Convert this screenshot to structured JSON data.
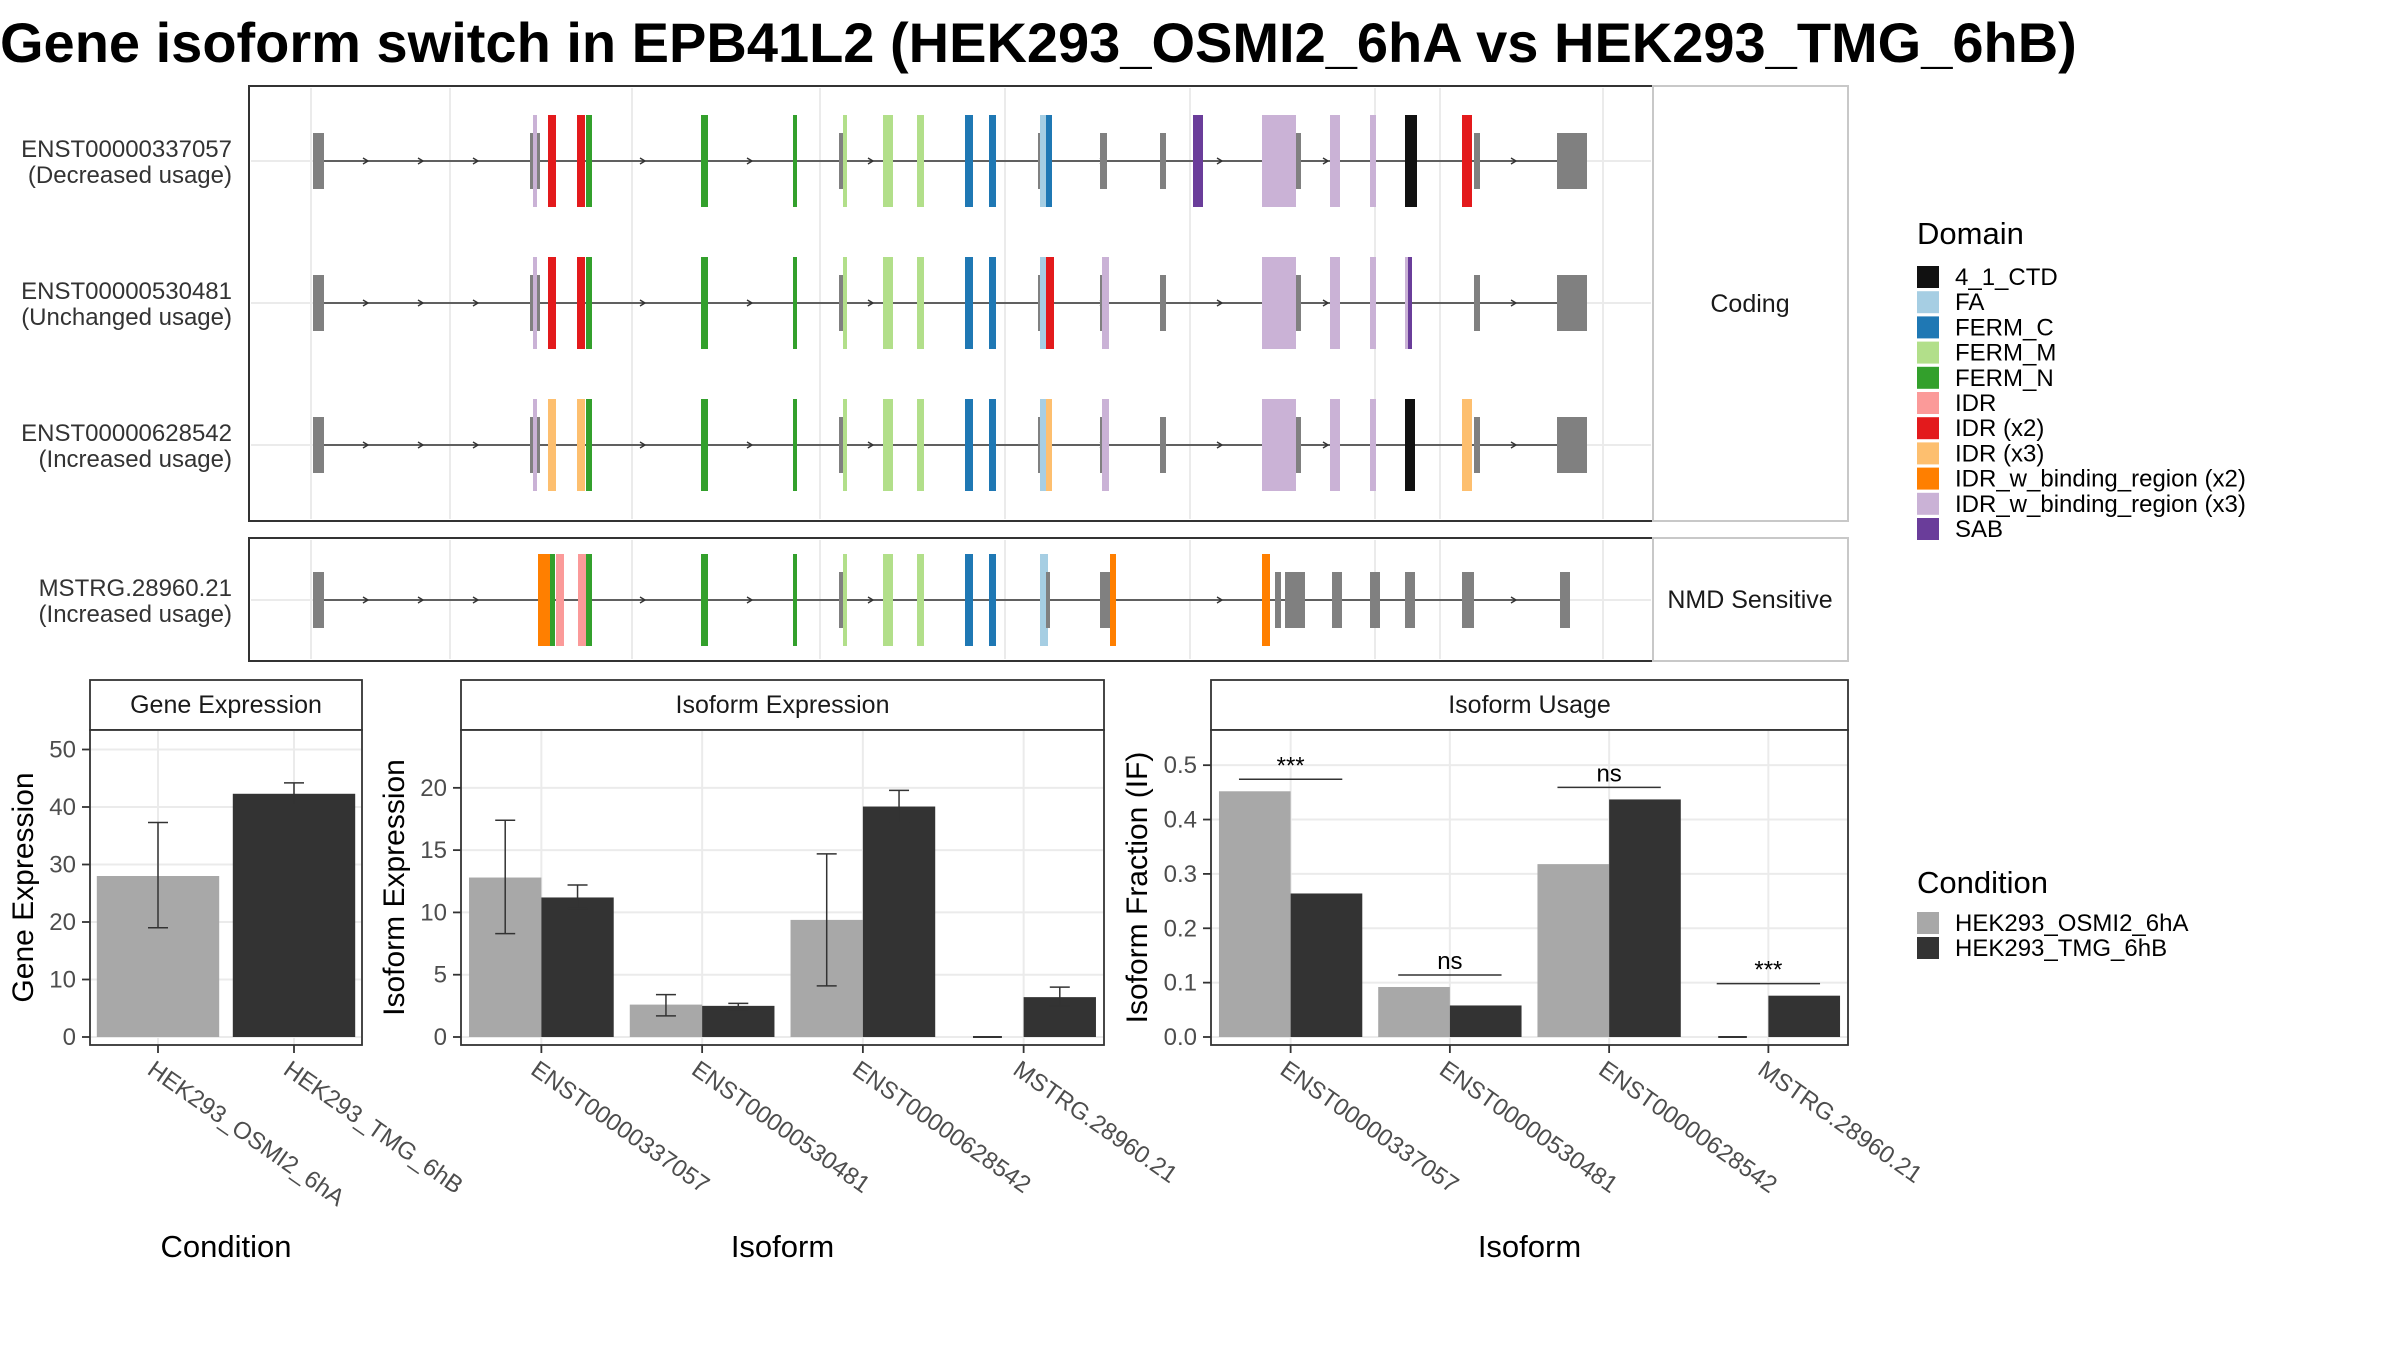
{
  "title": "Gene isoform switch in EPB41L2 (HEK293_OSMI2_6hA vs HEK293_TMG_6hB)",
  "colors": {
    "4_1_CTD": "#111111",
    "FA": "#a6cee3",
    "FERM_C": "#1f78b4",
    "FERM_M": "#b2df8a",
    "FERM_N": "#33a02c",
    "IDR": "#fb9a99",
    "IDR (x2)": "#e31a1c",
    "IDR (x3)": "#fdbf6f",
    "IDR_w_binding_region (x2)": "#ff7f00",
    "IDR_w_binding_region (x3)": "#cab2d6",
    "SAB": "#6a3d9a",
    "exon": "#808080",
    "cond_a": "#a8a8a8",
    "cond_b": "#333333"
  },
  "chart_data": [
    {
      "type": "gene-structure",
      "panels": [
        {
          "label": "Coding",
          "transcripts": [
            {
              "id": "ENST00000337057",
              "usage": "(Decreased usage)"
            },
            {
              "id": "ENST00000530481",
              "usage": "(Unchanged usage)"
            },
            {
              "id": "ENST00000628542",
              "usage": "(Increased usage)"
            }
          ]
        },
        {
          "label": "NMD Sensitive",
          "transcripts": [
            {
              "id": "MSTRG.28960.21",
              "usage": "(Increased usage)"
            }
          ]
        }
      ],
      "legend_title": "Domain",
      "legend": [
        "4_1_CTD",
        "FA",
        "FERM_C",
        "FERM_M",
        "FERM_N",
        "IDR",
        "IDR (x2)",
        "IDR (x3)",
        "IDR_w_binding_region (x2)",
        "IDR_w_binding_region (x3)",
        "SAB"
      ]
    },
    {
      "type": "bar",
      "title": "Gene Expression",
      "xlabel": "Condition",
      "ylabel": "Gene Expression",
      "categories": [
        "HEK293_OSMI2_6hA",
        "HEK293_TMG_6hB"
      ],
      "values": [
        28.0,
        42.3
      ],
      "error_low": [
        19.0,
        40.3
      ],
      "error_high": [
        37.3,
        44.2
      ],
      "ylim": [
        0,
        52
      ],
      "yticks": [
        0,
        10,
        20,
        30,
        40,
        50
      ]
    },
    {
      "type": "bar",
      "title": "Isoform Expression",
      "xlabel": "Isoform",
      "ylabel": "Isoform Expression",
      "categories": [
        "ENST00000337057",
        "ENST00000530481",
        "ENST00000628542",
        "MSTRG.28960.21"
      ],
      "series": [
        {
          "name": "HEK293_OSMI2_6hA",
          "values": [
            12.8,
            2.6,
            9.4,
            0.0
          ],
          "error_low": [
            8.3,
            1.7,
            4.1,
            0.0
          ],
          "error_high": [
            17.4,
            3.4,
            14.7,
            0.0
          ]
        },
        {
          "name": "HEK293_TMG_6hB",
          "values": [
            11.2,
            2.5,
            18.5,
            3.2
          ],
          "error_low": [
            10.3,
            2.2,
            17.2,
            2.5
          ],
          "error_high": [
            12.2,
            2.7,
            19.8,
            4.0
          ]
        }
      ],
      "ylim": [
        0,
        24
      ],
      "yticks": [
        0,
        5,
        10,
        15,
        20
      ]
    },
    {
      "type": "bar",
      "title": "Isoform Usage",
      "xlabel": "Isoform",
      "ylabel": "Isoform Fraction (IF)",
      "categories": [
        "ENST00000337057",
        "ENST00000530481",
        "ENST00000628542",
        "MSTRG.28960.21"
      ],
      "series": [
        {
          "name": "HEK293_OSMI2_6hA",
          "values": [
            0.452,
            0.092,
            0.318,
            0.0
          ]
        },
        {
          "name": "HEK293_TMG_6hB",
          "values": [
            0.264,
            0.058,
            0.437,
            0.076
          ]
        }
      ],
      "significance": [
        "***",
        "ns",
        "ns",
        "***"
      ],
      "ylim": [
        0,
        0.55
      ],
      "yticks": [
        0.0,
        0.1,
        0.2,
        0.3,
        0.4,
        0.5
      ],
      "ytick_labels": [
        "0.0",
        "0.1",
        "0.2",
        "0.3",
        "0.4",
        "0.5"
      ]
    }
  ],
  "condition_legend": {
    "title": "Condition",
    "items": [
      "HEK293_OSMI2_6hA",
      "HEK293_TMG_6hB"
    ]
  }
}
